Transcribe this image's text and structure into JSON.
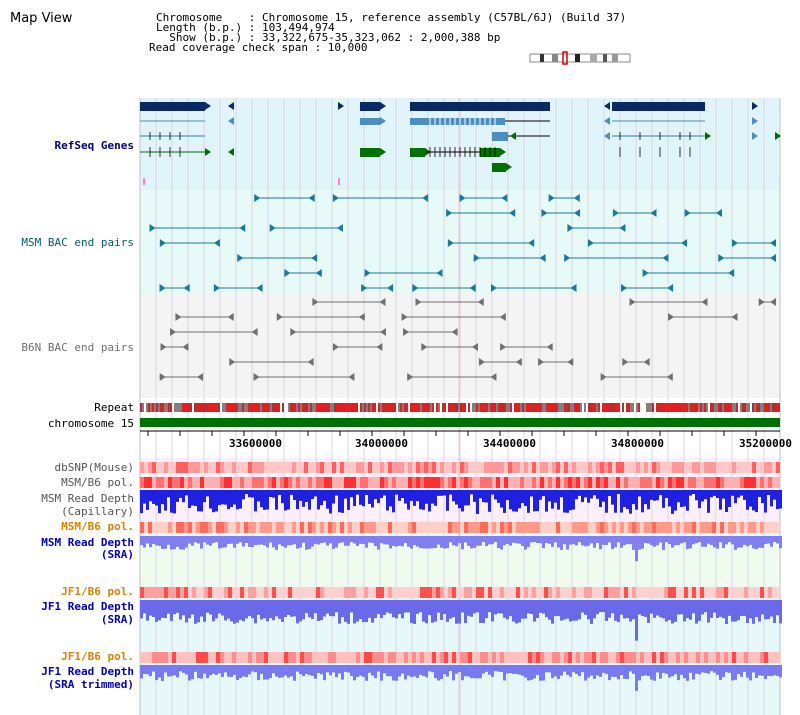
{
  "title": "Map View",
  "info": {
    "line1": "Chromosome    : Chromosome 15, reference assembly (C57BL/6J) (Build 37)",
    "line2": "Length (b.p.) : 103,494,974",
    "line3": "  Show (b.p.) : 33,322,675-35,323,062 : 2,000,388 bp",
    "line4": "Read coverage check span : 10,000"
  },
  "tracks": {
    "refseq": "RefSeq Genes",
    "msm_bac": "MSM BAC end pairs",
    "b6n_bac": "B6N BAC end pairs",
    "repeat": "Repeat",
    "chromosome": "chromosome 15",
    "dbsnp": "dbSNP(Mouse)",
    "msm_pol": "MSM/B6 pol.",
    "msm_depth_cap_1": "MSM Read Depth",
    "msm_depth_cap_2": "(Capillary)",
    "msm_pol2": "MSM/B6 pol.",
    "msm_depth_sra_1": "MSM Read Depth",
    "msm_depth_sra_2": "(SRA)",
    "jf1_pol": "JF1/B6 pol.",
    "jf1_depth_1": "JF1 Read Depth",
    "jf1_depth_2": "(SRA)",
    "jf1_pol2": "JF1/B6 pol.",
    "jf1_trim_1": "JF1 Read Depth",
    "jf1_trim_2": "(SRA trimmed)"
  },
  "axis_ticks": [
    "33600000",
    "34000000",
    "34400000",
    "34800000",
    "35200000"
  ],
  "colors": {
    "refseq_label": "#000080",
    "msm_label": "#006060",
    "b6n_label": "#707070",
    "pol_label": "#e08000",
    "depth_label": "#0000c0",
    "gene_dark": "#0a2a66",
    "gene_mid": "#4a8fc0",
    "gene_green": "#007000",
    "chromosome_bar": "#007000",
    "refseq_bg": "#e0f4fa",
    "msm_bg": "#e8faf8",
    "b6n_bg": "#f4f4f4"
  }
}
